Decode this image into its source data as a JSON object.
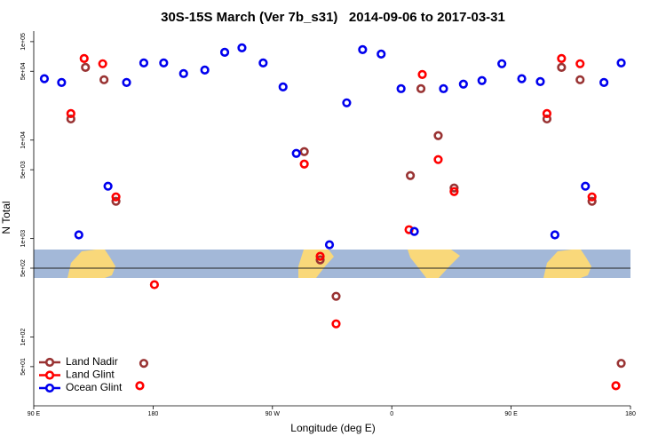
{
  "chart_data": {
    "type": "scatter",
    "title": "30S-15S March (Ver 7b_s31)   2014-09-06 to 2017-03-31",
    "x_label": "Longitude (deg E)",
    "y_label": "N Total",
    "xlim": [
      90,
      540
    ],
    "ylim": [
      20,
      128000
    ],
    "log_y": true,
    "hline": 500,
    "xticks": [
      {
        "value": 90,
        "label": "90 E"
      },
      180,
      {
        "value": 270,
        "label": "90 W"
      },
      {
        "value": 360,
        "label": "0"
      },
      {
        "value": 450,
        "label": "90 E"
      },
      {
        "value": 540,
        "label": "180"
      }
    ],
    "yticks": [
      {
        "value": 50,
        "label": "5e+01"
      },
      {
        "value": 100,
        "label": "1e+02"
      },
      {
        "value": 500,
        "label": "5e+02"
      },
      {
        "value": 1000,
        "label": "1e+03"
      },
      {
        "value": 5000,
        "label": "5e+03"
      },
      {
        "value": 10000,
        "label": "1e+04"
      },
      {
        "value": 50000,
        "label": "5e+04"
      },
      {
        "value": 100000,
        "label": "1e+05"
      }
    ],
    "legend": "bottom-left",
    "series": [
      {
        "name": "Land Nadir",
        "color": "#993333",
        "x": [
          118,
          129,
          143,
          152,
          173,
          294,
          306,
          318,
          374,
          382,
          395,
          407,
          477,
          488,
          502,
          511,
          533
        ],
        "values": [
          16400,
          54800,
          41000,
          2390,
          54,
          7640,
          608,
          259,
          4360,
          33300,
          11100,
          3260,
          16400,
          54800,
          41000,
          2390,
          54
        ]
      },
      {
        "name": "Land Glint",
        "color": "#ff0000",
        "x": [
          118,
          128,
          142,
          152,
          170,
          181,
          294,
          306,
          318,
          373,
          383,
          395,
          407,
          477,
          488,
          502,
          511,
          529
        ],
        "values": [
          18600,
          67400,
          59600,
          2650,
          32,
          340,
          5710,
          660,
          136,
          1230,
          46400,
          6340,
          3000,
          18600,
          67400,
          59600,
          2650,
          32
        ]
      },
      {
        "name": "Ocean Glint",
        "color": "#0000ee",
        "x": [
          98,
          111,
          124,
          146,
          160,
          173,
          188,
          203,
          219,
          234,
          247,
          263,
          278,
          288,
          313,
          326,
          338,
          352,
          367,
          377,
          399,
          414,
          428,
          443,
          458,
          472,
          483,
          506,
          520,
          533
        ],
        "values": [
          42000,
          38500,
          1090,
          3400,
          38500,
          60800,
          60800,
          47400,
          51500,
          78000,
          86500,
          60800,
          34700,
          7330,
          865,
          23900,
          83000,
          74800,
          33300,
          1180,
          33300,
          37000,
          40200,
          59600,
          42000,
          39300,
          1090,
          3400,
          38500,
          60800
        ]
      }
    ]
  }
}
